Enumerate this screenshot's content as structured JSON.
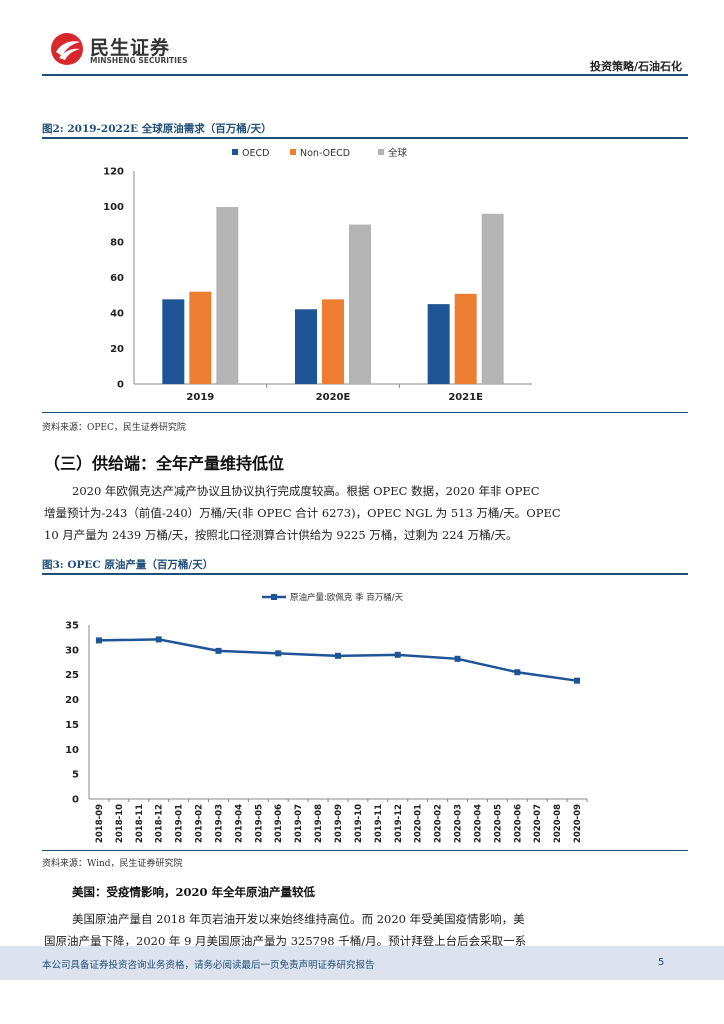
{
  "header": {
    "brand_cn": "民生证券",
    "brand_en": "MINSHENG SECURITIES",
    "category": "投资策略/石油石化"
  },
  "figure2": {
    "title": "图2: 2019-2022E 全球原油需求（百万桶/天）",
    "source": "资料来源：OPEC，民生证券研究院"
  },
  "section": {
    "title": "（三）供给端：全年产量维持低位",
    "para1_line1": "2020 年欧佩克达产减产协议且协议执行完成度较高。根据 OPEC 数据，2020 年非 OPEC",
    "para1_line2": "增量预计为-243（前值-240）万桶/天(非 OPEC 合计 6273)，OPEC NGL 为 513 万桶/天。OPEC",
    "para1_line3": "10 月产量为 2439 万桶/天，按照北口径测算合计供给为 9225 万桶，过剩为 224 万桶/天。"
  },
  "figure3": {
    "title": "图3: OPEC 原油产量（百万桶/天）",
    "source": "资料来源：Wind，民生证券研究院"
  },
  "us_section": {
    "heading": "美国：受疫情影响，2020 年全年原油产量较低",
    "line1": "美国原油产量自 2018 年页岩油开发以来始终维持高位。而 2020 年受美国疫情影响，美",
    "line2": "国原油产量下降，2020 年 9 月美国原油产量为 325798 千桶/月。预计拜登上台后会采取一系"
  },
  "footer": {
    "disclaimer": "本公司具备证券投资咨询业务资格，请务必阅读最后一页免责声明证券研究报告",
    "page": "5"
  },
  "colors": {
    "oecd": "#1f5597",
    "non_oecd": "#ed7d31",
    "global": "#b4b4b4",
    "line": "#1f5597",
    "brand_red": "#d9272e"
  },
  "chart_data": [
    {
      "type": "bar",
      "title": "图2: 2019-2022E 全球原油需求（百万桶/天）",
      "categories": [
        "2019",
        "2020E",
        "2021E"
      ],
      "series": [
        {
          "name": "OECD",
          "values": [
            47.7,
            42.1,
            45.0
          ]
        },
        {
          "name": "Non-OECD",
          "values": [
            52.0,
            47.7,
            50.8
          ]
        },
        {
          "name": "全球",
          "values": [
            99.7,
            89.8,
            95.9
          ]
        }
      ],
      "ylim": [
        0,
        120
      ],
      "yticks": [
        "0",
        "20",
        "40",
        "60",
        "80",
        "100",
        "120"
      ],
      "legend": "top-center"
    },
    {
      "type": "line",
      "title": "图3: OPEC 原油产量（百万桶/天）",
      "series": [
        {
          "name": "原油产量:欧佩克 季 百万桶/天",
          "values": [
            31.9,
            32.1,
            29.8,
            29.3,
            28.8,
            29.0,
            28.2,
            25.5,
            23.8
          ]
        }
      ],
      "x": [
        "2018-09",
        "2018-12",
        "2019-03",
        "2019-06",
        "2019-09",
        "2019-12",
        "2020-03",
        "2020-06",
        "2020-09"
      ],
      "xticks": [
        "2018-09",
        "2018-10",
        "2018-11",
        "2018-12",
        "2019-01",
        "2019-02",
        "2019-03",
        "2019-04",
        "2019-05",
        "2019-06",
        "2019-07",
        "2019-08",
        "2019-09",
        "2019-10",
        "2019-11",
        "2019-12",
        "2020-01",
        "2020-02",
        "2020-03",
        "2020-04",
        "2020-05",
        "2020-06",
        "2020-07",
        "2020-08",
        "2020-09"
      ],
      "ylim": [
        0,
        35
      ],
      "yticks": [
        "0",
        "5",
        "10",
        "15",
        "20",
        "25",
        "30",
        "35"
      ],
      "legend": "top-center"
    }
  ]
}
